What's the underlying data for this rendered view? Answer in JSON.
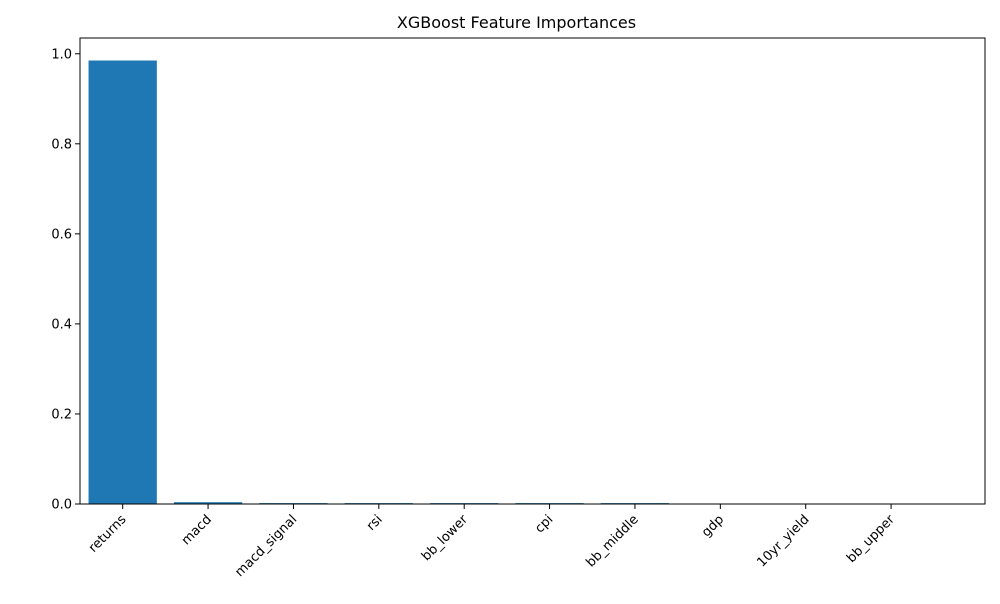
{
  "chart_data": {
    "type": "bar",
    "title": "XGBoost Feature Importances",
    "xlabel": "",
    "ylabel": "",
    "categories": [
      "returns",
      "macd",
      "macd_signal",
      "rsi",
      "bb_lower",
      "cpi",
      "bb_middle",
      "gdp",
      "10yr_yield",
      "bb_upper"
    ],
    "values": [
      0.985,
      0.004,
      0.002,
      0.002,
      0.002,
      0.002,
      0.002,
      0.0,
      0.0,
      0.0
    ],
    "ylim": [
      0,
      1.035
    ],
    "yticks": [
      0.0,
      0.2,
      0.4,
      0.6,
      0.8,
      1.0
    ],
    "ytick_labels": [
      "0.0",
      "0.2",
      "0.4",
      "0.6",
      "0.8",
      "1.0"
    ],
    "grid": false,
    "legend": "none",
    "bar_color": "#1f77b4",
    "xtick_rotation_deg": 45
  }
}
